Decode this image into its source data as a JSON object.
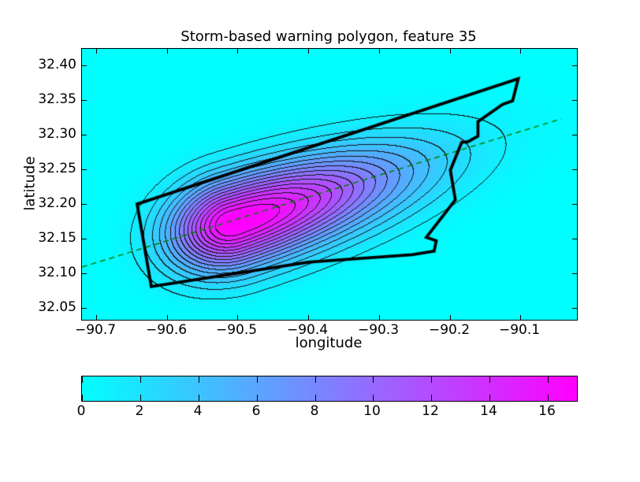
{
  "chart_data": {
    "type": "contour",
    "title": "Storm-based warning polygon, feature 35",
    "xlabel": "longitude",
    "ylabel": "latitude",
    "xlim": [
      -90.72,
      -90.02
    ],
    "ylim": [
      32.033,
      32.424
    ],
    "grid": false,
    "background_color": "#ffffff",
    "plot_bg_value_color": "#00ffff",
    "colormap": {
      "name": "cool",
      "start": "#00ffff",
      "end": "#ff00ff"
    },
    "xticks": [
      {
        "value": -90.7,
        "label": "−90.7"
      },
      {
        "value": -90.6,
        "label": "−90.6"
      },
      {
        "value": -90.5,
        "label": "−90.5"
      },
      {
        "value": -90.4,
        "label": "−90.4"
      },
      {
        "value": -90.3,
        "label": "−90.3"
      },
      {
        "value": -90.2,
        "label": "−90.2"
      },
      {
        "value": -90.1,
        "label": "−90.1"
      }
    ],
    "yticks": [
      {
        "value": 32.4,
        "label": "32.40"
      },
      {
        "value": 32.35,
        "label": "32.35"
      },
      {
        "value": 32.3,
        "label": "32.30"
      },
      {
        "value": 32.25,
        "label": "32.25"
      },
      {
        "value": 32.2,
        "label": "32.20"
      },
      {
        "value": 32.15,
        "label": "32.15"
      },
      {
        "value": 32.1,
        "label": "32.10"
      },
      {
        "value": 32.05,
        "label": "32.05"
      }
    ],
    "contour_levels": [
      1,
      2,
      3,
      4,
      5,
      6,
      7,
      8,
      9,
      10,
      11,
      12,
      13,
      14,
      15,
      16
    ],
    "contour_line_color": "#000000",
    "field_model": {
      "type": "asymmetric_gaussian_ridge",
      "center": [
        -90.506,
        32.172
      ],
      "amplitude": 17.4,
      "sigma_cross_track": 0.044,
      "sigma_along_track_sw": 0.062,
      "sigma_along_track_ne": 0.169,
      "ridge_slope_lat_per_lon": 0.318,
      "fill_grid_cell": 0.008
    },
    "warning_polygon": {
      "color": "#000000",
      "line_width": 3.8,
      "vertices": [
        [
          -90.642,
          32.2
        ],
        [
          -90.103,
          32.381
        ],
        [
          -90.111,
          32.349
        ],
        [
          -90.125,
          32.344
        ],
        [
          -90.16,
          32.319
        ],
        [
          -90.16,
          32.298
        ],
        [
          -90.174,
          32.29
        ],
        [
          -90.183,
          32.289
        ],
        [
          -90.199,
          32.249
        ],
        [
          -90.192,
          32.206
        ],
        [
          -90.233,
          32.152
        ],
        [
          -90.219,
          32.147
        ],
        [
          -90.222,
          32.132
        ],
        [
          -90.253,
          32.127
        ],
        [
          -90.4,
          32.116
        ],
        [
          -90.622,
          32.081
        ]
      ]
    },
    "track_line": {
      "style": "dashed",
      "color": "#008000",
      "from": [
        -90.72,
        32.109
      ],
      "to": [
        -90.042,
        32.323
      ]
    },
    "colorbar": {
      "min": 0,
      "max": 17,
      "orientation": "horizontal",
      "ticks": [
        {
          "value": 0,
          "label": "0"
        },
        {
          "value": 2,
          "label": "2"
        },
        {
          "value": 4,
          "label": "4"
        },
        {
          "value": 6,
          "label": "6"
        },
        {
          "value": 8,
          "label": "8"
        },
        {
          "value": 10,
          "label": "10"
        },
        {
          "value": 12,
          "label": "12"
        },
        {
          "value": 14,
          "label": "14"
        },
        {
          "value": 16,
          "label": "16"
        }
      ]
    }
  }
}
